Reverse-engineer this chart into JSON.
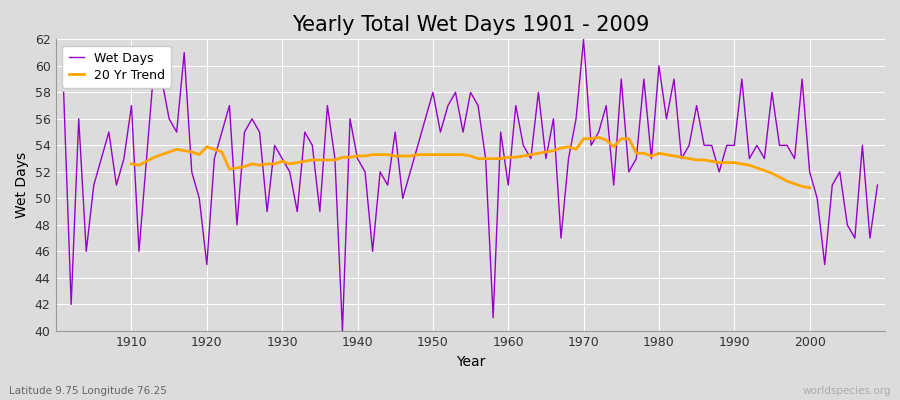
{
  "title": "Yearly Total Wet Days 1901 - 2009",
  "xlabel": "Year",
  "ylabel": "Wet Days",
  "subtitle": "Latitude 9.75 Longitude 76.25",
  "watermark": "worldspecies.org",
  "years": [
    1901,
    1902,
    1903,
    1904,
    1905,
    1906,
    1907,
    1908,
    1909,
    1910,
    1911,
    1912,
    1913,
    1914,
    1915,
    1916,
    1917,
    1918,
    1919,
    1920,
    1921,
    1922,
    1923,
    1924,
    1925,
    1926,
    1927,
    1928,
    1929,
    1930,
    1931,
    1932,
    1933,
    1934,
    1935,
    1936,
    1937,
    1938,
    1939,
    1940,
    1941,
    1942,
    1943,
    1944,
    1945,
    1946,
    1947,
    1948,
    1949,
    1950,
    1951,
    1952,
    1953,
    1954,
    1955,
    1956,
    1957,
    1958,
    1959,
    1960,
    1961,
    1962,
    1963,
    1964,
    1965,
    1966,
    1967,
    1968,
    1969,
    1970,
    1971,
    1972,
    1973,
    1974,
    1975,
    1976,
    1977,
    1978,
    1979,
    1980,
    1981,
    1982,
    1983,
    1984,
    1985,
    1986,
    1987,
    1988,
    1989,
    1990,
    1991,
    1992,
    1993,
    1994,
    1995,
    1996,
    1997,
    1998,
    1999,
    2000,
    2001,
    2002,
    2003,
    2004,
    2005,
    2006,
    2007,
    2008,
    2009
  ],
  "wet_days": [
    58,
    42,
    56,
    46,
    51,
    53,
    55,
    51,
    53,
    57,
    46,
    53,
    60,
    59,
    56,
    55,
    61,
    52,
    50,
    45,
    53,
    55,
    57,
    48,
    55,
    56,
    55,
    49,
    54,
    53,
    52,
    49,
    55,
    54,
    49,
    57,
    53,
    40,
    56,
    53,
    52,
    46,
    52,
    51,
    55,
    50,
    52,
    54,
    56,
    58,
    55,
    57,
    58,
    55,
    58,
    57,
    53,
    41,
    55,
    51,
    57,
    54,
    53,
    58,
    53,
    56,
    47,
    53,
    56,
    62,
    54,
    55,
    57,
    51,
    59,
    52,
    53,
    59,
    53,
    60,
    56,
    59,
    53,
    54,
    57,
    54,
    54,
    52,
    54,
    54,
    59,
    53,
    54,
    53,
    58,
    54,
    54,
    53,
    59,
    52,
    50,
    45,
    51,
    52,
    48,
    47,
    54,
    47,
    51
  ],
  "trend_years": [
    1910,
    1911,
    1912,
    1913,
    1914,
    1915,
    1916,
    1917,
    1918,
    1919,
    1920,
    1921,
    1922,
    1923,
    1924,
    1925,
    1926,
    1927,
    1928,
    1929,
    1930,
    1931,
    1932,
    1933,
    1934,
    1935,
    1936,
    1937,
    1938,
    1939,
    1940,
    1941,
    1942,
    1943,
    1944,
    1945,
    1946,
    1947,
    1948,
    1949,
    1950,
    1951,
    1952,
    1953,
    1954,
    1955,
    1956,
    1957,
    1958,
    1959,
    1960,
    1961,
    1962,
    1963,
    1964,
    1965,
    1966,
    1967,
    1968,
    1969,
    1970,
    1971,
    1972,
    1973,
    1974,
    1975,
    1976,
    1977,
    1978,
    1979,
    1980,
    1981,
    1982,
    1983,
    1984,
    1985,
    1986,
    1987,
    1988,
    1989,
    1990,
    1991,
    1992,
    1993,
    1994,
    1995,
    1996,
    1997,
    1998,
    1999,
    2000
  ],
  "trend_values": [
    52.6,
    52.5,
    52.8,
    53.1,
    53.3,
    53.5,
    53.7,
    53.6,
    53.5,
    53.3,
    53.9,
    53.7,
    53.5,
    52.2,
    52.3,
    52.4,
    52.6,
    52.5,
    52.6,
    52.6,
    52.8,
    52.6,
    52.7,
    52.8,
    52.9,
    52.9,
    52.9,
    52.9,
    53.1,
    53.1,
    53.2,
    53.2,
    53.3,
    53.3,
    53.3,
    53.2,
    53.2,
    53.2,
    53.3,
    53.3,
    53.3,
    53.3,
    53.3,
    53.3,
    53.3,
    53.2,
    53.0,
    53.0,
    53.0,
    53.0,
    53.1,
    53.1,
    53.2,
    53.3,
    53.4,
    53.5,
    53.6,
    53.8,
    53.9,
    53.7,
    54.5,
    54.5,
    54.6,
    54.4,
    53.9,
    54.5,
    54.5,
    53.4,
    53.4,
    53.2,
    53.4,
    53.3,
    53.2,
    53.1,
    53.0,
    52.9,
    52.9,
    52.8,
    52.7,
    52.7,
    52.7,
    52.6,
    52.5,
    52.3,
    52.1,
    51.9,
    51.6,
    51.3,
    51.1,
    50.9,
    50.8
  ],
  "wet_days_color": "#9900cc",
  "trend_color": "#ffa500",
  "background_color": "#dcdcdc",
  "plot_bg_color": "#dcdcdc",
  "ylim": [
    40,
    62
  ],
  "yticks": [
    40,
    42,
    44,
    46,
    48,
    50,
    52,
    54,
    56,
    58,
    60,
    62
  ],
  "grid_color": "#ffffff",
  "title_fontsize": 15,
  "axis_fontsize": 10,
  "tick_fontsize": 9,
  "legend_fontsize": 9
}
